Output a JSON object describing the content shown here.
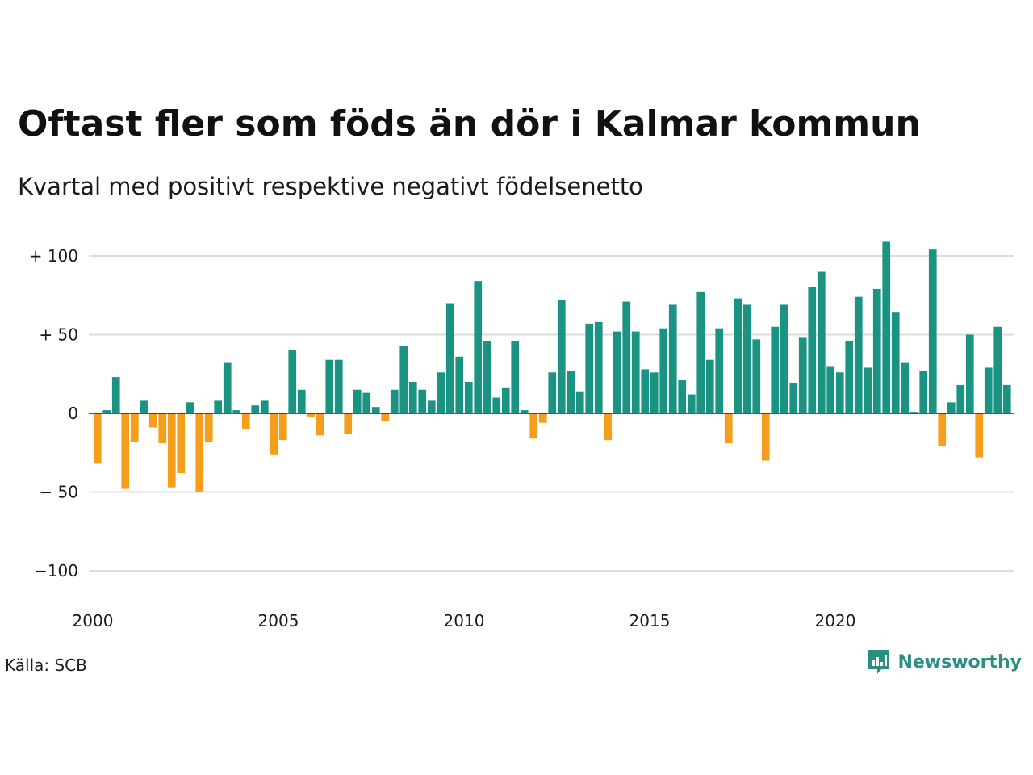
{
  "title": "Oftast fler som föds än dör i Kalmar kommun",
  "subtitle": "Kvartal med positivt respektive negativt födelsenetto",
  "source": "Källa: SCB",
  "brand": {
    "name": "Newsworthy",
    "icon": "newsworthy-logo-icon",
    "color": "#2a8f82"
  },
  "chart_data": {
    "type": "bar",
    "title": "Oftast fler som föds än dör i Kalmar kommun",
    "subtitle": "Kvartal med positivt respektive negativt födelsenetto",
    "xlabel": "",
    "ylabel": "",
    "xlim": [
      2000,
      2024.75
    ],
    "ylim": [
      -110,
      110
    ],
    "x_ticks": [
      2000,
      2005,
      2010,
      2015,
      2020
    ],
    "x_tick_labels": [
      "2000",
      "2005",
      "2010",
      "2015",
      "2020"
    ],
    "y_ticks": [
      100,
      50,
      0,
      -50,
      -100
    ],
    "y_tick_labels": [
      "+ 100",
      "+  50",
      "0",
      "− 50",
      "−100"
    ],
    "grid": true,
    "colors": {
      "positive": "#1a9382",
      "negative": "#f59e1c",
      "grid": "#dcdcdc",
      "zero_line": "#222222"
    },
    "start_year": 2000,
    "quarters_per_year": 4,
    "values": [
      -32,
      2,
      23,
      -48,
      -18,
      8,
      -9,
      -19,
      -47,
      -38,
      7,
      -50,
      -18,
      8,
      32,
      2,
      -10,
      5,
      8,
      -26,
      -17,
      40,
      15,
      -2,
      -14,
      34,
      34,
      -13,
      15,
      13,
      4,
      -5,
      15,
      43,
      20,
      15,
      8,
      26,
      70,
      36,
      20,
      84,
      46,
      10,
      16,
      46,
      2,
      -16,
      -6,
      26,
      72,
      27,
      14,
      57,
      58,
      -17,
      52,
      71,
      52,
      28,
      26,
      54,
      69,
      21,
      12,
      77,
      34,
      54,
      -19,
      73,
      69,
      47,
      -30,
      55,
      69,
      19,
      48,
      80,
      90,
      30,
      26,
      46,
      74,
      29,
      79,
      109,
      64,
      32,
      1,
      27,
      104,
      -21,
      7,
      18,
      50,
      -28,
      29,
      55,
      18
    ]
  }
}
